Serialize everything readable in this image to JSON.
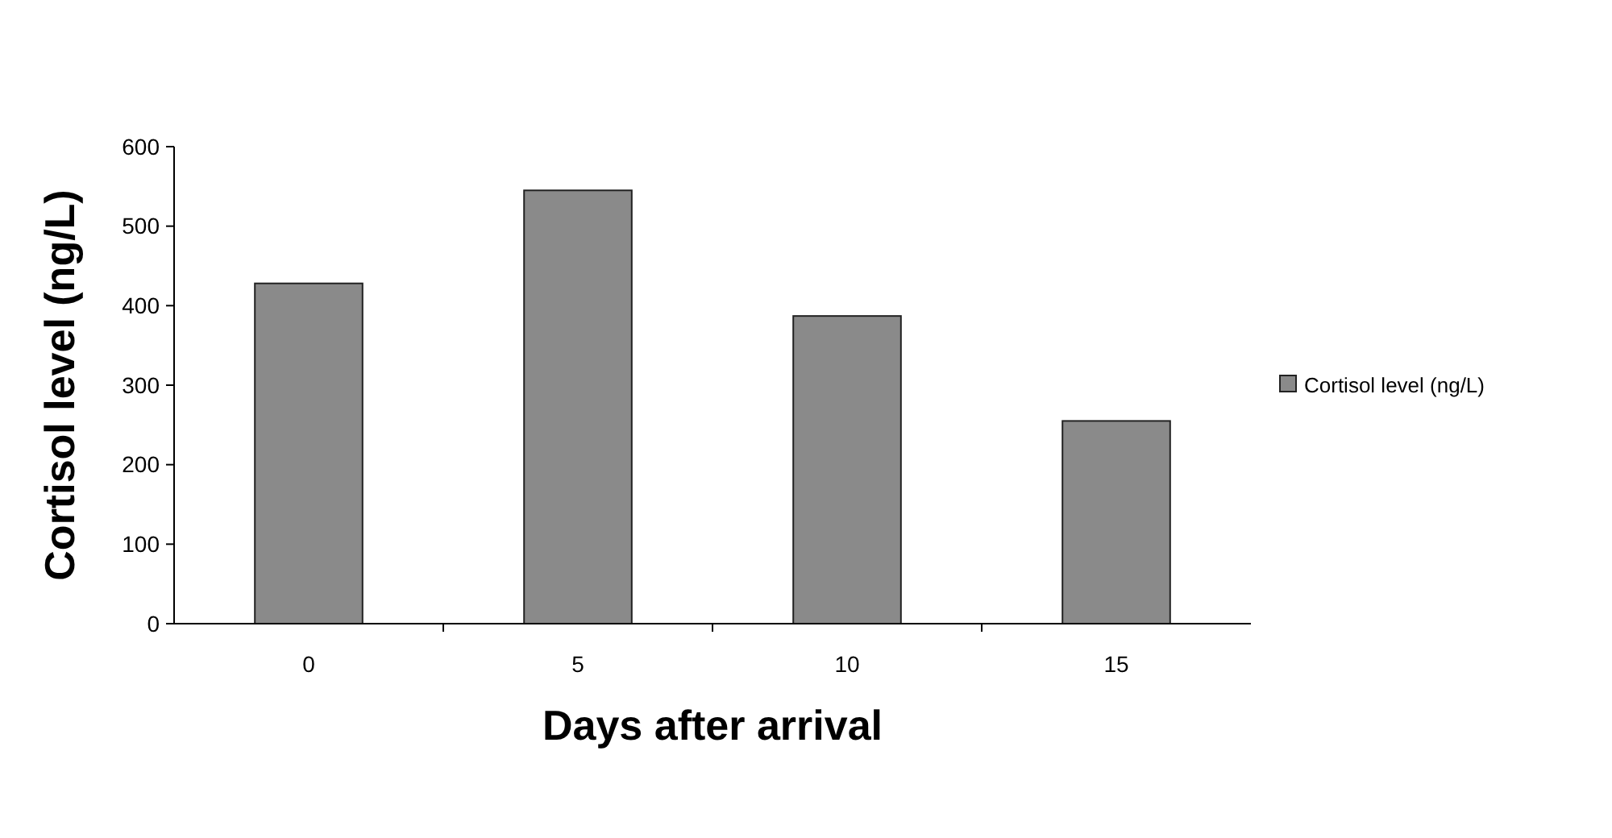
{
  "chart_data": {
    "type": "bar",
    "xlabel": "Days after arrival",
    "ylabel": "Cortisol level (ng/L)",
    "categories": [
      "0",
      "5",
      "10",
      "15"
    ],
    "series": [
      {
        "name": "Cortisol level (ng/L)",
        "color": "#8a8a8a",
        "values": [
          428,
          545,
          387,
          255
        ]
      }
    ],
    "ylim": [
      0,
      600
    ],
    "yticks": [
      0,
      100,
      200,
      300,
      400,
      500,
      600
    ],
    "grid": false,
    "legend": "right"
  }
}
